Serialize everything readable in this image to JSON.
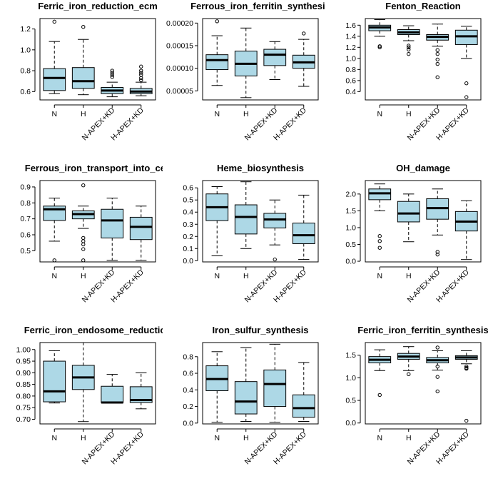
{
  "colors": {
    "box_fill": "#add8e6",
    "stroke": "#000000"
  },
  "chart_data": [
    {
      "type": "boxplot",
      "title": "Ferric_iron_reduction_ecm",
      "categories": [
        "N",
        "H",
        "N-APEX+KD",
        "H-APEX+KD"
      ],
      "ylim": [
        0.52,
        1.3
      ],
      "yticks": [
        "0.6",
        "0.8",
        "1.0",
        "1.2"
      ],
      "boxes": [
        {
          "min": 0.58,
          "q1": 0.61,
          "median": 0.73,
          "q3": 0.82,
          "max": 1.08,
          "outliers": [
            1.27
          ]
        },
        {
          "min": 0.57,
          "q1": 0.63,
          "median": 0.7,
          "q3": 0.83,
          "max": 1.1,
          "outliers": [
            1.22
          ]
        },
        {
          "min": 0.55,
          "q1": 0.58,
          "median": 0.61,
          "q3": 0.64,
          "max": 0.69,
          "outliers": [
            0.74,
            0.76,
            0.78,
            0.8
          ]
        },
        {
          "min": 0.56,
          "q1": 0.58,
          "median": 0.6,
          "q3": 0.63,
          "max": 0.69,
          "outliers": [
            0.71,
            0.73,
            0.76,
            0.78,
            0.8,
            0.84
          ]
        }
      ]
    },
    {
      "type": "boxplot",
      "title": "Ferrous_iron_ferritin_synthesis",
      "categories": [
        "N",
        "H",
        "N-APEX+KD",
        "H-APEX+KD"
      ],
      "ylim": [
        3e-05,
        0.00021
      ],
      "yticks": [
        "0.00005",
        "0.00010",
        "0.00015",
        "0.00020"
      ],
      "boxes": [
        {
          "min": 6.2e-05,
          "q1": 9.7e-05,
          "median": 0.000118,
          "q3": 0.00013,
          "max": 0.000172,
          "outliers": [
            0.000204
          ]
        },
        {
          "min": 3.5e-05,
          "q1": 8.3e-05,
          "median": 0.00011,
          "q3": 0.000138,
          "max": 0.000189,
          "outliers": []
        },
        {
          "min": 7.5e-05,
          "q1": 0.000106,
          "median": 0.00013,
          "q3": 0.000142,
          "max": 0.000159,
          "outliers": []
        },
        {
          "min": 6e-05,
          "q1": 0.0001,
          "median": 0.000113,
          "q3": 0.000129,
          "max": 0.000164,
          "outliers": [
            0.000177
          ]
        }
      ]
    },
    {
      "type": "boxplot",
      "title": "Fenton_Reaction",
      "categories": [
        "N",
        "H",
        "N-APEX+KD",
        "H-APEX+KD"
      ],
      "ylim": [
        0.25,
        1.72
      ],
      "yticks": [
        "0.4",
        "0.6",
        "0.8",
        "1.0",
        "1.2",
        "1.4",
        "1.6"
      ],
      "boxes": [
        {
          "min": 1.4,
          "q1": 1.5,
          "median": 1.56,
          "q3": 1.6,
          "max": 1.7,
          "outliers": [
            1.2,
            1.22
          ]
        },
        {
          "min": 1.32,
          "q1": 1.43,
          "median": 1.47,
          "q3": 1.52,
          "max": 1.59,
          "outliers": [
            1.08,
            1.16,
            1.2,
            1.23
          ]
        },
        {
          "min": 1.22,
          "q1": 1.33,
          "median": 1.39,
          "q3": 1.43,
          "max": 1.62,
          "outliers": [
            0.66,
            0.9,
            0.98,
            1.08,
            1.15
          ]
        },
        {
          "min": 1.0,
          "q1": 1.25,
          "median": 1.4,
          "q3": 1.51,
          "max": 1.58,
          "outliers": [
            0.3,
            0.55
          ]
        }
      ]
    },
    {
      "type": "boxplot",
      "title": "Ferrous_iron_transport_into_cell",
      "categories": [
        "N",
        "H",
        "N-APEX+KD",
        "H-APEX+KD"
      ],
      "ylim": [
        0.43,
        0.94
      ],
      "yticks": [
        "0.5",
        "0.6",
        "0.7",
        "0.8",
        "0.9"
      ],
      "boxes": [
        {
          "min": 0.56,
          "q1": 0.69,
          "median": 0.76,
          "q3": 0.78,
          "max": 0.83,
          "outliers": [
            0.44
          ]
        },
        {
          "min": 0.64,
          "q1": 0.7,
          "median": 0.73,
          "q3": 0.75,
          "max": 0.78,
          "outliers": [
            0.44,
            0.51,
            0.54,
            0.56,
            0.58,
            0.91
          ]
        },
        {
          "min": 0.44,
          "q1": 0.58,
          "median": 0.69,
          "q3": 0.76,
          "max": 0.83,
          "outliers": []
        },
        {
          "min": 0.44,
          "q1": 0.57,
          "median": 0.65,
          "q3": 0.71,
          "max": 0.78,
          "outliers": []
        }
      ]
    },
    {
      "type": "boxplot",
      "title": "Heme_biosynthesis",
      "categories": [
        "N",
        "H",
        "N-APEX+KD",
        "H-APEX+KD"
      ],
      "ylim": [
        -0.01,
        0.66
      ],
      "yticks": [
        "0.0",
        "0.1",
        "0.2",
        "0.3",
        "0.4",
        "0.5",
        "0.6"
      ],
      "boxes": [
        {
          "min": 0.04,
          "q1": 0.33,
          "median": 0.44,
          "q3": 0.55,
          "max": 0.61,
          "outliers": []
        },
        {
          "min": 0.1,
          "q1": 0.22,
          "median": 0.36,
          "q3": 0.46,
          "max": 0.65,
          "outliers": []
        },
        {
          "min": 0.13,
          "q1": 0.27,
          "median": 0.34,
          "q3": 0.39,
          "max": 0.5,
          "outliers": [
            0.01
          ]
        },
        {
          "min": 0.01,
          "q1": 0.14,
          "median": 0.21,
          "q3": 0.31,
          "max": 0.54,
          "outliers": []
        }
      ]
    },
    {
      "type": "boxplot",
      "title": "OH_damage",
      "categories": [
        "N",
        "H",
        "N-APEX+KD",
        "H-APEX+KD"
      ],
      "ylim": [
        -0.02,
        2.4
      ],
      "yticks": [
        "0.0",
        "0.5",
        "1.0",
        "1.5",
        "2.0"
      ],
      "boxes": [
        {
          "min": 1.5,
          "q1": 1.83,
          "median": 2.02,
          "q3": 2.15,
          "max": 2.3,
          "outliers": [
            0.4,
            0.6,
            0.75
          ]
        },
        {
          "min": 0.58,
          "q1": 1.17,
          "median": 1.42,
          "q3": 1.78,
          "max": 2.0,
          "outliers": []
        },
        {
          "min": 0.78,
          "q1": 1.25,
          "median": 1.58,
          "q3": 1.86,
          "max": 2.15,
          "outliers": [
            0.2,
            0.28
          ]
        },
        {
          "min": 0.05,
          "q1": 0.9,
          "median": 1.18,
          "q3": 1.48,
          "max": 1.8,
          "outliers": []
        }
      ]
    },
    {
      "type": "boxplot",
      "title": "Ferric_iron_endosome_reduction",
      "categories": [
        "N",
        "H",
        "N-APEX+KD",
        "H-APEX+KD"
      ],
      "ylim": [
        0.68,
        1.03
      ],
      "yticks": [
        "0.70",
        "0.75",
        "0.80",
        "0.85",
        "0.90",
        "0.95",
        "1.00"
      ],
      "boxes": [
        {
          "min": 0.77,
          "q1": 0.775,
          "median": 0.82,
          "q3": 0.95,
          "max": 0.995,
          "outliers": []
        },
        {
          "min": 0.69,
          "q1": 0.828,
          "median": 0.88,
          "q3": 0.932,
          "max": 1.03,
          "outliers": []
        },
        {
          "min": 0.77,
          "q1": 0.772,
          "median": 0.772,
          "q3": 0.842,
          "max": 0.893,
          "outliers": []
        },
        {
          "min": 0.745,
          "q1": 0.772,
          "median": 0.783,
          "q3": 0.84,
          "max": 0.9,
          "outliers": []
        }
      ]
    },
    {
      "type": "boxplot",
      "title": "Iron_sulfur_synthesis",
      "categories": [
        "N",
        "H",
        "N-APEX+KD",
        "H-APEX+KD"
      ],
      "ylim": [
        -0.01,
        0.97
      ],
      "yticks": [
        "0.0",
        "0.2",
        "0.4",
        "0.6",
        "0.8"
      ],
      "boxes": [
        {
          "min": 0.01,
          "q1": 0.39,
          "median": 0.53,
          "q3": 0.69,
          "max": 0.86,
          "outliers": []
        },
        {
          "min": 0.02,
          "q1": 0.11,
          "median": 0.26,
          "q3": 0.5,
          "max": 0.91,
          "outliers": []
        },
        {
          "min": 0.01,
          "q1": 0.2,
          "median": 0.47,
          "q3": 0.64,
          "max": 0.95,
          "outliers": []
        },
        {
          "min": 0.02,
          "q1": 0.07,
          "median": 0.18,
          "q3": 0.34,
          "max": 0.73,
          "outliers": []
        }
      ]
    },
    {
      "type": "boxplot",
      "title": "Ferric_iron_ferritin_synthesis",
      "categories": [
        "N",
        "H",
        "N-APEX+KD",
        "H-APEX+KD"
      ],
      "ylim": [
        -0.02,
        1.78
      ],
      "yticks": [
        "0.0",
        "0.5",
        "1.0",
        "1.5"
      ],
      "boxes": [
        {
          "min": 1.16,
          "q1": 1.33,
          "median": 1.4,
          "q3": 1.47,
          "max": 1.62,
          "outliers": [
            0.62
          ]
        },
        {
          "min": 1.16,
          "q1": 1.41,
          "median": 1.47,
          "q3": 1.54,
          "max": 1.69,
          "outliers": [
            1.08
          ]
        },
        {
          "min": 1.17,
          "q1": 1.33,
          "median": 1.39,
          "q3": 1.45,
          "max": 1.6,
          "outliers": [
            0.7,
            1.02,
            1.25,
            1.67
          ]
        },
        {
          "min": 1.31,
          "q1": 1.41,
          "median": 1.45,
          "q3": 1.49,
          "max": 1.6,
          "outliers": [
            0.05,
            1.2,
            1.22,
            1.25
          ]
        }
      ]
    }
  ]
}
